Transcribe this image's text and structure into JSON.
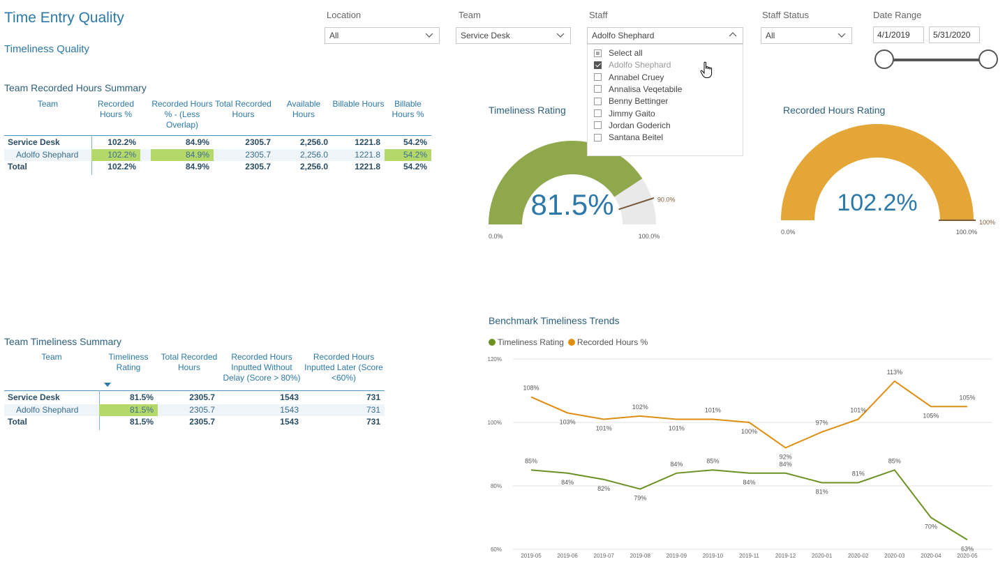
{
  "header": {
    "title": "Time Entry Quality",
    "subtitle": "Timeliness Quality"
  },
  "filters": {
    "location": {
      "label": "Location",
      "value": "All"
    },
    "team": {
      "label": "Team",
      "value": "Service Desk"
    },
    "staff": {
      "label": "Staff",
      "value": "Adolfo Shephard"
    },
    "staff_status": {
      "label": "Staff Status",
      "value": "All"
    },
    "date_range": {
      "label": "Date Range",
      "start": "4/1/2019",
      "end": "5/31/2020"
    }
  },
  "staff_options": [
    {
      "label": "Select all",
      "state": "partial"
    },
    {
      "label": "Adolfo Shephard",
      "state": "checked"
    },
    {
      "label": "Annabel Cruey",
      "state": "unchecked"
    },
    {
      "label": "Annalisa Veqetabile",
      "state": "unchecked"
    },
    {
      "label": "Benny Bettinger",
      "state": "unchecked"
    },
    {
      "label": "Jimmy Gaito",
      "state": "unchecked"
    },
    {
      "label": "Jordan Goderich",
      "state": "unchecked"
    },
    {
      "label": "Santana Beitel",
      "state": "unchecked"
    }
  ],
  "hours_summary": {
    "title": "Team Recorded Hours Summary",
    "columns": [
      "Team",
      "Recorded Hours %",
      "Recorded Hours % - (Less Overlap)",
      "Total Recorded Hours",
      "Available Hours",
      "Billable Hours",
      "Billable Hours %"
    ],
    "rows": [
      [
        "Service Desk",
        "102.2%",
        "84.9%",
        "2305.7",
        "2,256.0",
        "1221.8",
        "54.2%"
      ],
      [
        "Adolfo Shephard",
        "102.2%",
        "84.9%",
        "2305.7",
        "2,256.0",
        "1221.8",
        "54.2%"
      ],
      [
        "Total",
        "102.2%",
        "84.9%",
        "2305.7",
        "2,256.0",
        "1221.8",
        "54.2%"
      ]
    ]
  },
  "timeliness_summary": {
    "title": "Team Timeliness Summary",
    "columns": [
      "Team",
      "Timeliness Rating",
      "Total Recorded Hours",
      "Recorded Hours Inputted Without Delay (Score > 80%)",
      "Recorded Hours Inputted Later (Score <60%)"
    ],
    "rows": [
      [
        "Service Desk",
        "81.5%",
        "2305.7",
        "1543",
        "731"
      ],
      [
        "Adolfo Shephard",
        "81.5%",
        "2305.7",
        "1543",
        "731"
      ],
      [
        "Total",
        "81.5%",
        "2305.7",
        "1543",
        "731"
      ]
    ]
  },
  "gauge_timeliness": {
    "title": "Timeliness Rating",
    "value": 81.5,
    "value_label": "81.5%",
    "target": 90,
    "target_label": "90.0%",
    "min_label": "0.0%",
    "max_label": "100.0%",
    "color": "#8ea84b"
  },
  "gauge_recorded": {
    "title": "Recorded Hours Rating",
    "value": 102.2,
    "value_label": "102.2%",
    "target": 100,
    "target_label": "100%",
    "min_label": "0.0%",
    "max_label": "100.0%",
    "color": "#e3a637"
  },
  "chart_data": {
    "type": "line",
    "title": "Benchmark  Timeliness Trends",
    "categories": [
      "2019-05",
      "2019-06",
      "2019-07",
      "2019-08",
      "2019-09",
      "2019-10",
      "2019-11",
      "2019-12",
      "2020-01",
      "2020-02",
      "2020-03",
      "2020-04",
      "2020-05"
    ],
    "ylim": [
      60,
      120
    ],
    "yticks": [
      "60%",
      "80%",
      "100%",
      "120%"
    ],
    "grid": true,
    "legend": "top-left",
    "series": [
      {
        "name": "Timeliness Rating",
        "color": "#6b9123",
        "values": [
          85,
          84,
          82,
          79,
          84,
          85,
          84,
          84,
          81,
          81,
          85,
          70,
          63
        ],
        "labels": [
          "85%",
          "84%",
          "82%",
          "79%",
          "84%",
          "85%",
          "84%",
          "84%",
          "81%",
          "81%",
          "85%",
          "70%",
          "63%"
        ]
      },
      {
        "name": "Recorded Hours %",
        "color": "#de8e10",
        "values": [
          108,
          103,
          101,
          102,
          101,
          101,
          100,
          92,
          97,
          101,
          113,
          105,
          105
        ],
        "labels": [
          "108%",
          "103%",
          "101%",
          "102%",
          "101%",
          "101%",
          "100%",
          "92%",
          "97%",
          "101%",
          "113%",
          "105%",
          "105%"
        ]
      }
    ]
  },
  "icons": {
    "chevron": "chevron-down-icon",
    "chevron_up": "chevron-up-icon",
    "cursor": "hand-cursor-icon"
  }
}
